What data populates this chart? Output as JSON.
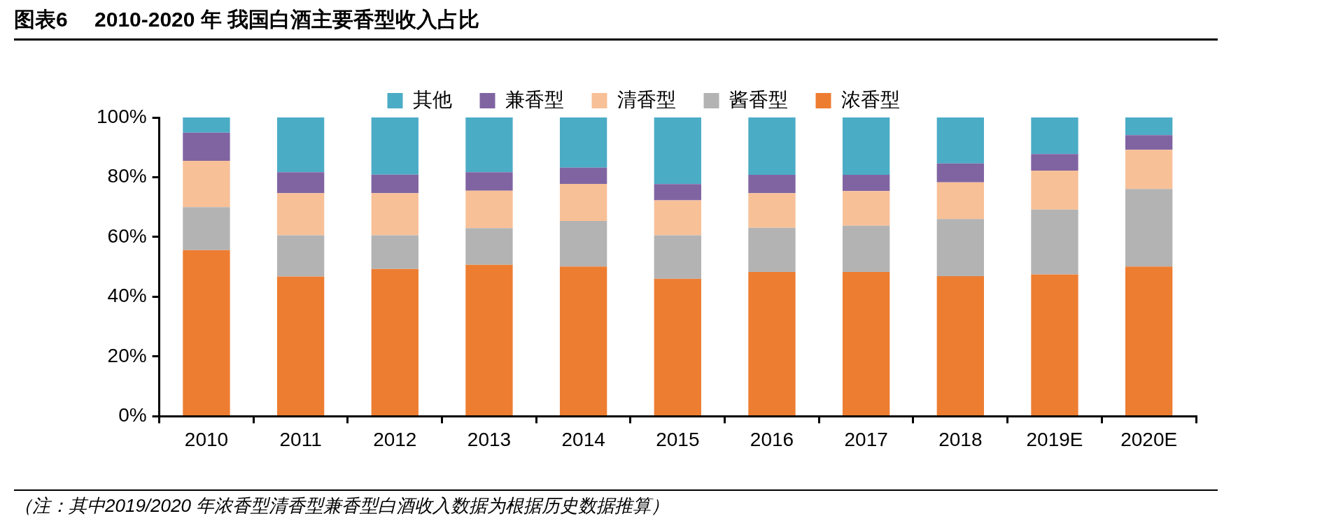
{
  "chart_data": {
    "type": "bar",
    "title": "图表6　 2010-2020 年 我国白酒主要香型收入占比",
    "categories": [
      "2010",
      "2011",
      "2012",
      "2013",
      "2014",
      "2015",
      "2016",
      "2017",
      "2018",
      "2019E",
      "2020E"
    ],
    "stacked": true,
    "legend": "top",
    "grid": false,
    "ylim": [
      0,
      100
    ],
    "yticks": [
      {
        "value": 0,
        "label": "0%"
      },
      {
        "value": 20,
        "label": "20%"
      },
      {
        "value": 40,
        "label": "40%"
      },
      {
        "value": 60,
        "label": "60%"
      },
      {
        "value": 80,
        "label": "80%"
      },
      {
        "value": 100,
        "label": "100%"
      }
    ],
    "series": [
      {
        "name": "浓香型",
        "color": "#ed7d31",
        "values": [
          55.6,
          46.8,
          49.3,
          50.7,
          50.1,
          46.0,
          48.3,
          48.3,
          46.9,
          47.5,
          50.1
        ]
      },
      {
        "name": "酱香型",
        "color": "#b3b3b3",
        "values": [
          14.4,
          13.8,
          11.3,
          12.3,
          15.3,
          14.6,
          14.8,
          15.5,
          19.1,
          21.7,
          26.0
        ]
      },
      {
        "name": "清香型",
        "color": "#f8c097",
        "values": [
          15.5,
          14.1,
          14.1,
          12.5,
          12.4,
          11.7,
          11.6,
          11.6,
          12.3,
          13.0,
          13.1
        ]
      },
      {
        "name": "兼香型",
        "color": "#8064a2",
        "values": [
          9.4,
          7.0,
          6.2,
          6.2,
          5.4,
          5.4,
          6.1,
          5.4,
          6.3,
          5.6,
          4.9
        ]
      },
      {
        "name": "其他",
        "color": "#4bacc6",
        "values": [
          5.1,
          18.3,
          19.1,
          18.3,
          16.8,
          22.3,
          19.2,
          19.2,
          15.4,
          12.2,
          5.9
        ]
      }
    ],
    "annotations": [
      "（注：其中2019/2020 年浓香型清香型兼香型白酒收入数据为根据历史数据推算）"
    ]
  }
}
